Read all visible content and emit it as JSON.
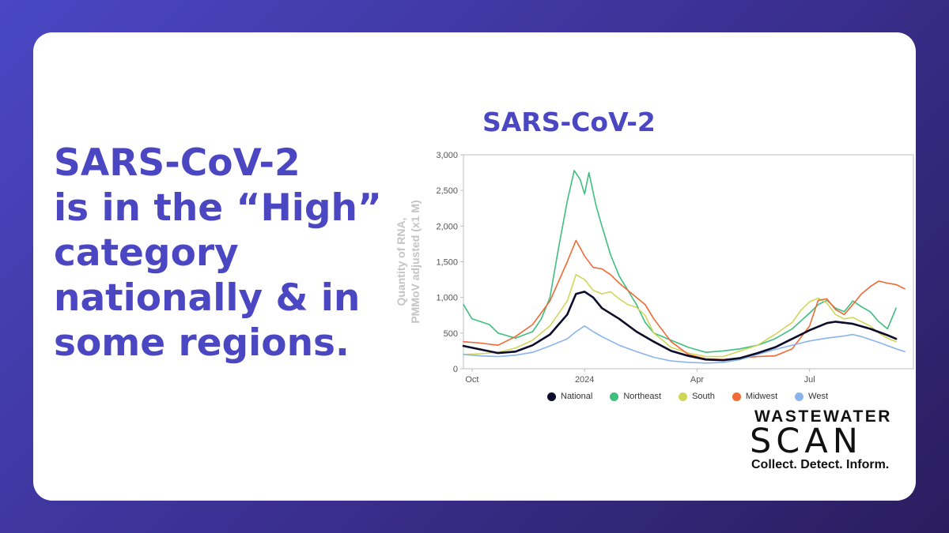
{
  "headline": {
    "lines": [
      "SARS-CoV-2",
      "is in the “High”",
      "category",
      "nationally & in",
      "some regions."
    ]
  },
  "colors": {
    "accent": "#4b47c2",
    "national": "#0d0d2b",
    "northeast": "#3fbf7f",
    "south": "#cfd65a",
    "midwest": "#ef6a34",
    "west": "#8ab4ee"
  },
  "chart_data": {
    "type": "line",
    "title": "SARS-CoV-2",
    "ylabel": "Quantity of RNA, PMMoV adjusted (x1 M)",
    "ylabel_lines": [
      "Quantity of RNA,",
      "PMMoV adjusted (x1 M)"
    ],
    "xlabel": "",
    "ylim": [
      0,
      3000
    ],
    "yticks": [
      0,
      500,
      1000,
      1500,
      2000,
      2500,
      3000
    ],
    "ytick_labels": [
      "0",
      "500",
      "1,000",
      "1,500",
      "2,000",
      "2,500",
      "3,000"
    ],
    "xlim": [
      0,
      52
    ],
    "xticks": [
      {
        "x": 1,
        "label": "Oct"
      },
      {
        "x": 14,
        "label": "2024"
      },
      {
        "x": 27,
        "label": "Apr"
      },
      {
        "x": 40,
        "label": "Jul"
      }
    ],
    "series": [
      {
        "name": "National",
        "color": "#0d0d2b",
        "width": 2.6,
        "points": [
          [
            0,
            320
          ],
          [
            2,
            270
          ],
          [
            4,
            220
          ],
          [
            6,
            240
          ],
          [
            8,
            330
          ],
          [
            10,
            480
          ],
          [
            12,
            760
          ],
          [
            13,
            1050
          ],
          [
            14,
            1080
          ],
          [
            15,
            1000
          ],
          [
            16,
            850
          ],
          [
            18,
            700
          ],
          [
            20,
            520
          ],
          [
            22,
            380
          ],
          [
            24,
            250
          ],
          [
            26,
            180
          ],
          [
            28,
            130
          ],
          [
            30,
            120
          ],
          [
            32,
            150
          ],
          [
            34,
            220
          ],
          [
            36,
            300
          ],
          [
            38,
            420
          ],
          [
            40,
            540
          ],
          [
            42,
            640
          ],
          [
            43,
            660
          ],
          [
            45,
            630
          ],
          [
            47,
            560
          ],
          [
            49,
            470
          ],
          [
            50,
            420
          ]
        ]
      },
      {
        "name": "Northeast",
        "color": "#3fbf7f",
        "width": 1.6,
        "points": [
          [
            0,
            900
          ],
          [
            1,
            700
          ],
          [
            3,
            620
          ],
          [
            4,
            500
          ],
          [
            6,
            430
          ],
          [
            8,
            520
          ],
          [
            9,
            700
          ],
          [
            10,
            1000
          ],
          [
            11,
            1700
          ],
          [
            12,
            2350
          ],
          [
            12.8,
            2780
          ],
          [
            13.5,
            2650
          ],
          [
            14,
            2450
          ],
          [
            14.5,
            2750
          ],
          [
            15.3,
            2300
          ],
          [
            16,
            2000
          ],
          [
            17,
            1600
          ],
          [
            18,
            1300
          ],
          [
            19,
            1100
          ],
          [
            20,
            900
          ],
          [
            21,
            650
          ],
          [
            22,
            500
          ],
          [
            24,
            400
          ],
          [
            26,
            300
          ],
          [
            28,
            230
          ],
          [
            30,
            250
          ],
          [
            32,
            280
          ],
          [
            34,
            330
          ],
          [
            36,
            420
          ],
          [
            38,
            560
          ],
          [
            40,
            780
          ],
          [
            41,
            900
          ],
          [
            42,
            960
          ],
          [
            43,
            850
          ],
          [
            44,
            800
          ],
          [
            45,
            950
          ],
          [
            46,
            870
          ],
          [
            47,
            800
          ],
          [
            48,
            660
          ],
          [
            49,
            560
          ],
          [
            50,
            850
          ]
        ]
      },
      {
        "name": "South",
        "color": "#cfd65a",
        "width": 1.6,
        "points": [
          [
            0,
            200
          ],
          [
            2,
            210
          ],
          [
            4,
            230
          ],
          [
            6,
            290
          ],
          [
            8,
            400
          ],
          [
            10,
            600
          ],
          [
            12,
            950
          ],
          [
            13,
            1320
          ],
          [
            14,
            1250
          ],
          [
            15,
            1100
          ],
          [
            16,
            1050
          ],
          [
            17,
            1080
          ],
          [
            18,
            980
          ],
          [
            19,
            900
          ],
          [
            20,
            860
          ],
          [
            21,
            750
          ],
          [
            22,
            500
          ],
          [
            24,
            300
          ],
          [
            26,
            220
          ],
          [
            28,
            170
          ],
          [
            30,
            170
          ],
          [
            32,
            250
          ],
          [
            34,
            330
          ],
          [
            36,
            480
          ],
          [
            38,
            650
          ],
          [
            39,
            820
          ],
          [
            40,
            940
          ],
          [
            41,
            990
          ],
          [
            42,
            920
          ],
          [
            43,
            760
          ],
          [
            44,
            700
          ],
          [
            45,
            720
          ],
          [
            46,
            660
          ],
          [
            47,
            600
          ],
          [
            48,
            500
          ],
          [
            49,
            430
          ],
          [
            50,
            380
          ]
        ]
      },
      {
        "name": "Midwest",
        "color": "#ef6a34",
        "width": 1.6,
        "points": [
          [
            0,
            380
          ],
          [
            2,
            360
          ],
          [
            4,
            330
          ],
          [
            6,
            450
          ],
          [
            8,
            620
          ],
          [
            10,
            950
          ],
          [
            12,
            1500
          ],
          [
            13,
            1800
          ],
          [
            14,
            1580
          ],
          [
            15,
            1420
          ],
          [
            16,
            1400
          ],
          [
            17,
            1320
          ],
          [
            18,
            1200
          ],
          [
            19,
            1100
          ],
          [
            20,
            1000
          ],
          [
            21,
            900
          ],
          [
            22,
            700
          ],
          [
            24,
            380
          ],
          [
            26,
            200
          ],
          [
            28,
            140
          ],
          [
            30,
            130
          ],
          [
            32,
            150
          ],
          [
            34,
            170
          ],
          [
            36,
            180
          ],
          [
            38,
            280
          ],
          [
            40,
            600
          ],
          [
            41,
            960
          ],
          [
            42,
            980
          ],
          [
            43,
            830
          ],
          [
            44,
            760
          ],
          [
            45,
            900
          ],
          [
            46,
            1050
          ],
          [
            47,
            1150
          ],
          [
            48,
            1230
          ],
          [
            49,
            1200
          ],
          [
            50,
            1180
          ],
          [
            51,
            1120
          ]
        ]
      },
      {
        "name": "West",
        "color": "#8ab4ee",
        "width": 1.6,
        "points": [
          [
            0,
            200
          ],
          [
            2,
            180
          ],
          [
            4,
            170
          ],
          [
            6,
            190
          ],
          [
            8,
            230
          ],
          [
            10,
            320
          ],
          [
            12,
            420
          ],
          [
            13,
            520
          ],
          [
            14,
            600
          ],
          [
            15,
            520
          ],
          [
            16,
            450
          ],
          [
            18,
            330
          ],
          [
            20,
            240
          ],
          [
            22,
            160
          ],
          [
            24,
            110
          ],
          [
            26,
            90
          ],
          [
            28,
            80
          ],
          [
            30,
            90
          ],
          [
            32,
            130
          ],
          [
            34,
            200
          ],
          [
            36,
            270
          ],
          [
            38,
            330
          ],
          [
            40,
            390
          ],
          [
            42,
            430
          ],
          [
            44,
            460
          ],
          [
            45,
            480
          ],
          [
            46,
            450
          ],
          [
            48,
            370
          ],
          [
            50,
            280
          ],
          [
            51,
            240
          ]
        ]
      }
    ]
  },
  "logo": {
    "line1": "WASTEWATER",
    "line2": "SCAN",
    "tagline": "Collect. Detect. Inform."
  }
}
